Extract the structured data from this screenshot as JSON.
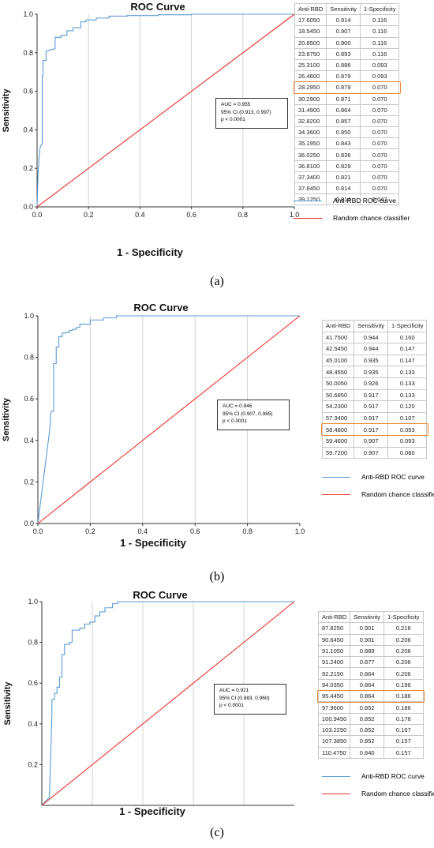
{
  "colors": {
    "roc": "#5b9bd5",
    "chance": "#e8322b",
    "highlight": "#ef8a2f",
    "grid": "#d3d3d3"
  },
  "legend": {
    "roc_label": "Anti-RBD ROC curve",
    "chance_label": "Random chance classifier"
  },
  "table_headers": {
    "col1": "Anti-RBD",
    "col2": "Sensitivity",
    "col3": "1-Specificity"
  },
  "panels": [
    {
      "caption": "(a)",
      "auc": {
        "line1": "AUC = 0.955",
        "line2": "95% CI (0.913, 0.997)",
        "line3": "p < 0.0001"
      },
      "highlight_row": 6,
      "table": [
        [
          "17.6050",
          "0.914",
          "0.116"
        ],
        [
          "18.5450",
          "0.907",
          "0.116"
        ],
        [
          "20.8500",
          "0.900",
          "0.116"
        ],
        [
          "23.8750",
          "0.893",
          "0.116"
        ],
        [
          "25.3100",
          "0.886",
          "0.093"
        ],
        [
          "26.4600",
          "0.879",
          "0.093"
        ],
        [
          "28.2950",
          "0.879",
          "0.070"
        ],
        [
          "30.2900",
          "0.871",
          "0.070"
        ],
        [
          "31.4900",
          "0.864",
          "0.070"
        ],
        [
          "32.8200",
          "0.857",
          "0.070"
        ],
        [
          "34.3600",
          "0.850",
          "0.070"
        ],
        [
          "35.1950",
          "0.843",
          "0.070"
        ],
        [
          "36.0250",
          "0.836",
          "0.070"
        ],
        [
          "36.8100",
          "0.829",
          "0.070"
        ],
        [
          "37.3400",
          "0.821",
          "0.070"
        ],
        [
          "37.8450",
          "0.814",
          "0.070"
        ],
        [
          "39.1250",
          "0.814",
          "0.047"
        ]
      ]
    },
    {
      "caption": "(b)",
      "auc": {
        "line1": "AUC = 0.946",
        "line2": "95% CI (0.907, 0.985)",
        "line3": "p < 0.0001"
      },
      "highlight_row": 8,
      "table": [
        [
          "41.7500",
          "0.944",
          "0.160"
        ],
        [
          "42.5450",
          "0.944",
          "0.147"
        ],
        [
          "45.0100",
          "0.935",
          "0.147"
        ],
        [
          "48.4550",
          "0.935",
          "0.133"
        ],
        [
          "50.0050",
          "0.926",
          "0.133"
        ],
        [
          "50.6850",
          "0.917",
          "0.133"
        ],
        [
          "54.2300",
          "0.917",
          "0.120"
        ],
        [
          "57.3400",
          "0.917",
          "0.107"
        ],
        [
          "58.4800",
          "0.917",
          "0.093"
        ],
        [
          "59.4600",
          "0.907",
          "0.093"
        ],
        [
          "59.7200",
          "0.907",
          "0.080"
        ]
      ]
    },
    {
      "caption": "(c)",
      "auc": {
        "line1": "AUC = 0.921",
        "line2": "95% CI (0.883, 0.960)",
        "line3": "p < 0.0001"
      },
      "highlight_row": 6,
      "table": [
        [
          "87.8250",
          "0.901",
          "0.216"
        ],
        [
          "90.6450",
          "0.901",
          "0.206"
        ],
        [
          "91.1050",
          "0.889",
          "0.206"
        ],
        [
          "91.2400",
          "0.877",
          "0.206"
        ],
        [
          "92.2150",
          "0.864",
          "0.206"
        ],
        [
          "94.0350",
          "0.864",
          "0.196"
        ],
        [
          "95.4450",
          "0.864",
          "0.186"
        ],
        [
          "97.9600",
          "0.852",
          "0.186"
        ],
        [
          "100.9450",
          "0.852",
          "0.176"
        ],
        [
          "103.2250",
          "0.852",
          "0.167"
        ],
        [
          "107.3850",
          "0.852",
          "0.157"
        ],
        [
          "110.4750",
          "0.840",
          "0.157"
        ]
      ]
    }
  ],
  "chart_data": [
    {
      "type": "line",
      "title": "ROC Curve",
      "xlabel": "1 - Specificity",
      "ylabel": "Sensitivity",
      "xlim": [
        0,
        1
      ],
      "ylim": [
        0,
        1
      ],
      "xticks": [
        "0.0",
        "0.2",
        "0.4",
        "0.6",
        "0.8",
        "1.0"
      ],
      "yticks": [
        "0.0",
        "0.2",
        "0.4",
        "0.6",
        "0.8",
        "1.0"
      ],
      "grid": true,
      "legend_position": "right",
      "series": [
        {
          "name": "Anti-RBD ROC curve",
          "x": [
            0,
            0.004,
            0.008,
            0.012,
            0.016,
            0.02,
            0.02,
            0.023,
            0.023,
            0.035,
            0.035,
            0.047,
            0.047,
            0.07,
            0.07,
            0.093,
            0.093,
            0.116,
            0.116,
            0.14,
            0.14,
            0.17,
            0.17,
            0.19,
            0.19,
            0.23,
            0.23,
            0.28,
            0.28,
            0.35,
            0.35,
            0.47,
            0.47,
            0.6,
            0.6,
            1.0
          ],
          "y": [
            0,
            0.18,
            0.26,
            0.31,
            0.32,
            0.33,
            0.68,
            0.68,
            0.76,
            0.76,
            0.81,
            0.81,
            0.814,
            0.82,
            0.88,
            0.88,
            0.89,
            0.89,
            0.914,
            0.914,
            0.93,
            0.93,
            0.96,
            0.96,
            0.97,
            0.97,
            0.98,
            0.98,
            0.99,
            0.99,
            0.993,
            0.993,
            0.997,
            0.997,
            1.0,
            1.0
          ]
        },
        {
          "name": "Random chance classifier",
          "x": [
            0,
            1
          ],
          "y": [
            0,
            1
          ]
        }
      ]
    },
    {
      "type": "line",
      "title": "ROC Curve",
      "xlabel": "1 - Specificity",
      "ylabel": "Sensitivity",
      "xlim": [
        0,
        1
      ],
      "ylim": [
        0,
        1
      ],
      "xticks": [
        "0.0",
        "0.2",
        "0.4",
        "0.6",
        "0.8",
        "1.0"
      ],
      "yticks": [
        "0.0",
        "0.2",
        "0.4",
        "0.6",
        "0.8",
        "1.0"
      ],
      "grid": true,
      "legend_position": "right",
      "series": [
        {
          "name": "Anti-RBD ROC curve",
          "x": [
            0,
            0.04,
            0.045,
            0.05,
            0.05,
            0.06,
            0.06,
            0.07,
            0.07,
            0.08,
            0.08,
            0.093,
            0.093,
            0.107,
            0.107,
            0.12,
            0.12,
            0.133,
            0.133,
            0.147,
            0.147,
            0.16,
            0.16,
            0.2,
            0.2,
            0.25,
            0.25,
            0.3,
            0.3,
            1.0
          ],
          "y": [
            0,
            0.4,
            0.45,
            0.54,
            0.54,
            0.54,
            0.77,
            0.77,
            0.85,
            0.85,
            0.9,
            0.9,
            0.917,
            0.917,
            0.92,
            0.92,
            0.93,
            0.93,
            0.935,
            0.935,
            0.944,
            0.944,
            0.96,
            0.96,
            0.98,
            0.98,
            0.99,
            0.99,
            1.0,
            1.0
          ]
        },
        {
          "name": "Random chance classifier",
          "x": [
            0,
            1
          ],
          "y": [
            0,
            1
          ]
        }
      ]
    },
    {
      "type": "line",
      "title": "ROC Curve",
      "xlabel": "1 - Specificity",
      "ylabel": "Sensitivity",
      "xlim": [
        0,
        1
      ],
      "ylim": [
        0,
        1
      ],
      "xticks": [],
      "yticks": [
        "0.2",
        "0.4",
        "0.6",
        "0.8",
        "1.0"
      ],
      "grid": true,
      "legend_position": "right",
      "series": [
        {
          "name": "Anti-RBD ROC curve",
          "x": [
            0,
            0.03,
            0.04,
            0.04,
            0.05,
            0.05,
            0.06,
            0.06,
            0.07,
            0.07,
            0.08,
            0.08,
            0.09,
            0.09,
            0.11,
            0.11,
            0.12,
            0.12,
            0.15,
            0.15,
            0.17,
            0.17,
            0.19,
            0.19,
            0.21,
            0.21,
            0.23,
            0.23,
            0.25,
            0.25,
            0.28,
            0.28,
            0.3,
            0.3,
            1.0
          ],
          "y": [
            0,
            0.04,
            0.45,
            0.52,
            0.52,
            0.55,
            0.55,
            0.58,
            0.58,
            0.63,
            0.63,
            0.74,
            0.74,
            0.79,
            0.79,
            0.8,
            0.8,
            0.86,
            0.86,
            0.87,
            0.87,
            0.89,
            0.89,
            0.9,
            0.9,
            0.93,
            0.93,
            0.95,
            0.95,
            0.97,
            0.97,
            0.99,
            0.99,
            1.0,
            1.0
          ]
        },
        {
          "name": "Random chance classifier",
          "x": [
            0,
            1
          ],
          "y": [
            0,
            1
          ]
        }
      ]
    }
  ]
}
